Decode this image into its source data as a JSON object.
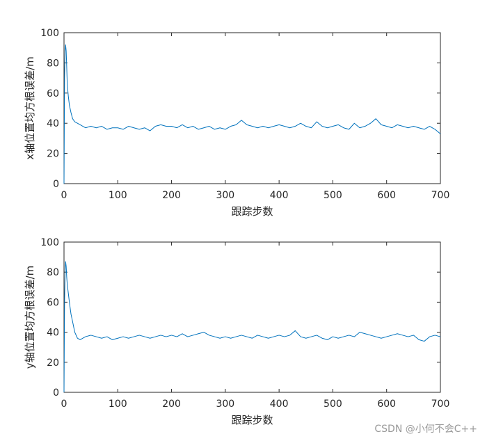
{
  "watermark": "CSDN @小何不会C++",
  "chart_data": [
    {
      "type": "line",
      "xlabel": "跟踪步数",
      "ylabel": "x轴位置均方根误差/m",
      "xlim": [
        0,
        700
      ],
      "ylim": [
        0,
        100
      ],
      "xticks": [
        "0",
        "100",
        "200",
        "300",
        "400",
        "500",
        "600",
        "700"
      ],
      "yticks": [
        "0",
        "20",
        "40",
        "60",
        "80",
        "100"
      ],
      "grid": false,
      "series_color": "#0072BD",
      "series": [
        {
          "x": [
            0,
            1,
            2,
            3,
            4,
            5,
            6,
            8,
            10,
            13,
            16,
            20,
            25,
            30,
            35,
            40,
            50,
            60,
            70,
            80,
            90,
            100,
            110,
            120,
            130,
            140,
            150,
            160,
            170,
            180,
            190,
            200,
            210,
            220,
            230,
            240,
            250,
            260,
            270,
            280,
            290,
            300,
            310,
            320,
            330,
            340,
            350,
            360,
            370,
            380,
            390,
            400,
            410,
            420,
            430,
            440,
            450,
            460,
            470,
            480,
            490,
            500,
            510,
            520,
            530,
            540,
            550,
            560,
            570,
            580,
            590,
            600,
            610,
            620,
            630,
            640,
            650,
            660,
            670,
            680,
            690,
            700
          ],
          "y": [
            0,
            70,
            88,
            92,
            88,
            78,
            66,
            58,
            52,
            47,
            43,
            41,
            40,
            39,
            38,
            37,
            38,
            37,
            38,
            36,
            37,
            37,
            36,
            38,
            37,
            36,
            37,
            35,
            38,
            39,
            38,
            38,
            37,
            39,
            37,
            38,
            36,
            37,
            38,
            36,
            37,
            36,
            38,
            39,
            42,
            39,
            38,
            37,
            38,
            37,
            38,
            39,
            38,
            37,
            38,
            40,
            38,
            37,
            41,
            38,
            37,
            38,
            39,
            37,
            36,
            40,
            37,
            38,
            40,
            43,
            39,
            38,
            37,
            39,
            38,
            37,
            38,
            37,
            36,
            38,
            36,
            33
          ]
        }
      ]
    },
    {
      "type": "line",
      "xlabel": "跟踪步数",
      "ylabel": "y轴位置均方根误差/m",
      "xlim": [
        0,
        700
      ],
      "ylim": [
        0,
        100
      ],
      "xticks": [
        "0",
        "100",
        "200",
        "300",
        "400",
        "500",
        "600",
        "700"
      ],
      "yticks": [
        "0",
        "20",
        "40",
        "60",
        "80",
        "100"
      ],
      "grid": false,
      "series_color": "#0072BD",
      "series": [
        {
          "x": [
            0,
            1,
            2,
            3,
            4,
            5,
            6,
            8,
            10,
            13,
            16,
            20,
            25,
            30,
            35,
            40,
            50,
            60,
            70,
            80,
            90,
            100,
            110,
            120,
            130,
            140,
            150,
            160,
            170,
            180,
            190,
            200,
            210,
            220,
            230,
            240,
            250,
            260,
            270,
            280,
            290,
            300,
            310,
            320,
            330,
            340,
            350,
            360,
            370,
            380,
            390,
            400,
            410,
            420,
            430,
            440,
            450,
            460,
            470,
            480,
            490,
            500,
            510,
            520,
            530,
            540,
            550,
            560,
            570,
            580,
            590,
            600,
            610,
            620,
            630,
            640,
            650,
            660,
            670,
            680,
            690,
            700
          ],
          "y": [
            0,
            60,
            80,
            87,
            84,
            77,
            72,
            66,
            60,
            52,
            47,
            40,
            36,
            35,
            36,
            37,
            38,
            37,
            36,
            37,
            35,
            36,
            37,
            36,
            37,
            38,
            37,
            36,
            37,
            38,
            37,
            38,
            37,
            39,
            37,
            38,
            39,
            40,
            38,
            37,
            36,
            37,
            36,
            37,
            38,
            37,
            36,
            38,
            37,
            36,
            37,
            38,
            37,
            38,
            41,
            37,
            36,
            37,
            38,
            36,
            35,
            37,
            36,
            37,
            38,
            37,
            40,
            39,
            38,
            37,
            36,
            37,
            38,
            39,
            38,
            37,
            38,
            35,
            34,
            37,
            38,
            37
          ]
        }
      ]
    }
  ]
}
